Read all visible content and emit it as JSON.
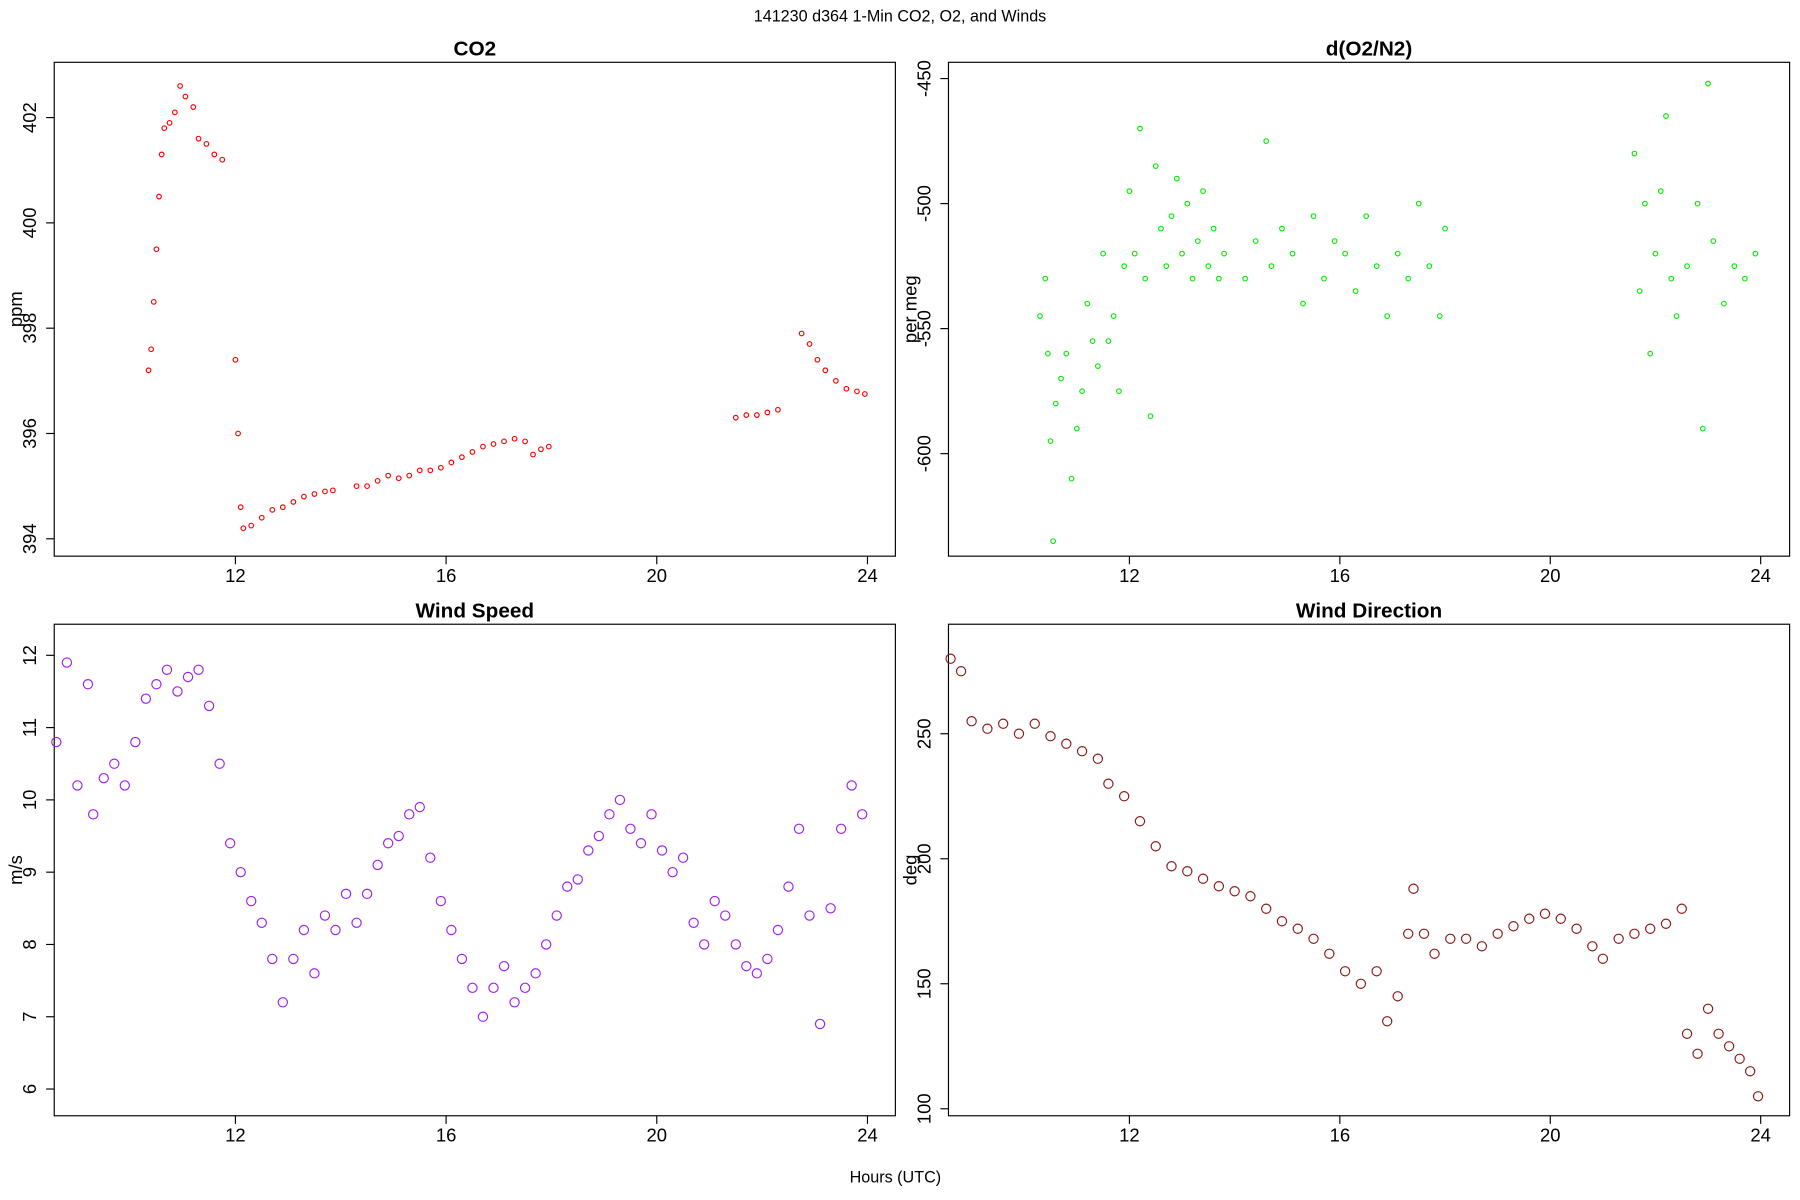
{
  "title": "141230   d364   1-Min CO2, O2, and Winds",
  "xlabel": "Hours (UTC)",
  "chart_data": [
    {
      "type": "scatter",
      "title": "CO2",
      "ylabel": "ppm",
      "color": "#ff0000",
      "xlim": [
        8.56,
        24.53
      ],
      "ylim": [
        393.67,
        403.05
      ],
      "xticks": [
        12,
        16,
        20,
        24
      ],
      "yticks": [
        394,
        396,
        398,
        400,
        402
      ],
      "x": [
        10.35,
        10.4,
        10.45,
        10.5,
        10.55,
        10.6,
        10.65,
        10.75,
        10.85,
        10.95,
        11.05,
        11.2,
        11.3,
        11.45,
        11.6,
        11.75,
        12.0,
        12.05,
        12.1,
        12.15,
        12.3,
        12.5,
        12.7,
        12.9,
        13.1,
        13.3,
        13.5,
        13.7,
        13.85,
        14.3,
        14.5,
        14.7,
        14.9,
        15.1,
        15.3,
        15.5,
        15.7,
        15.9,
        16.1,
        16.3,
        16.5,
        16.7,
        16.9,
        17.1,
        17.3,
        17.5,
        17.65,
        17.8,
        17.95,
        21.5,
        21.7,
        21.9,
        22.1,
        22.3,
        22.75,
        22.9,
        23.05,
        23.2,
        23.4,
        23.6,
        23.8,
        23.95
      ],
      "values": [
        397.2,
        397.6,
        398.5,
        399.5,
        400.5,
        401.3,
        401.8,
        401.9,
        402.1,
        402.6,
        402.4,
        402.2,
        401.6,
        401.5,
        401.3,
        401.2,
        397.4,
        396.0,
        394.6,
        394.2,
        394.25,
        394.4,
        394.55,
        394.6,
        394.7,
        394.8,
        394.85,
        394.9,
        394.92,
        395.0,
        395.0,
        395.1,
        395.2,
        395.15,
        395.2,
        395.3,
        395.3,
        395.35,
        395.45,
        395.55,
        395.65,
        395.75,
        395.8,
        395.85,
        395.9,
        395.85,
        395.6,
        395.7,
        395.75,
        396.3,
        396.35,
        396.35,
        396.4,
        396.45,
        397.9,
        397.7,
        397.4,
        397.2,
        397.0,
        396.85,
        396.8,
        396.75
      ]
    },
    {
      "type": "scatter",
      "title": "d(O2/N2)",
      "ylabel": "per meg",
      "color": "#00ee00",
      "xlim": [
        8.56,
        24.55
      ],
      "ylim": [
        -641,
        -443.5
      ],
      "xticks": [
        12,
        16,
        20,
        24
      ],
      "yticks": [
        -600,
        -550,
        -500,
        -450
      ],
      "x": [
        10.3,
        10.4,
        10.45,
        10.5,
        10.55,
        10.6,
        10.7,
        10.8,
        10.9,
        11.0,
        11.1,
        11.2,
        11.3,
        11.4,
        11.5,
        11.6,
        11.7,
        11.8,
        11.9,
        12.0,
        12.1,
        12.2,
        12.3,
        12.4,
        12.5,
        12.6,
        12.7,
        12.8,
        12.9,
        13.0,
        13.1,
        13.2,
        13.3,
        13.4,
        13.5,
        13.6,
        13.7,
        13.8,
        14.2,
        14.4,
        14.6,
        14.7,
        14.9,
        15.1,
        15.3,
        15.5,
        15.7,
        15.9,
        16.1,
        16.3,
        16.5,
        16.7,
        16.9,
        17.1,
        17.3,
        17.5,
        17.7,
        17.9,
        18.0,
        21.6,
        21.7,
        21.8,
        21.9,
        22.0,
        22.1,
        22.2,
        22.3,
        22.4,
        22.6,
        22.8,
        22.9,
        23.0,
        23.1,
        23.3,
        23.5,
        23.7,
        23.9
      ],
      "values": [
        -545,
        -530,
        -560,
        -595,
        -635,
        -580,
        -570,
        -560,
        -610,
        -590,
        -575,
        -540,
        -555,
        -565,
        -520,
        -555,
        -545,
        -575,
        -525,
        -495,
        -520,
        -470,
        -530,
        -585,
        -485,
        -510,
        -525,
        -505,
        -490,
        -520,
        -500,
        -530,
        -515,
        -495,
        -525,
        -510,
        -530,
        -520,
        -530,
        -515,
        -475,
        -525,
        -510,
        -520,
        -540,
        -505,
        -530,
        -515,
        -520,
        -535,
        -505,
        -525,
        -545,
        -520,
        -530,
        -500,
        -525,
        -545,
        -510,
        -480,
        -535,
        -500,
        -560,
        -520,
        -495,
        -465,
        -530,
        -545,
        -525,
        -500,
        -590,
        -452,
        -515,
        -540,
        -525,
        -530,
        -520
      ]
    },
    {
      "type": "scatter",
      "title": "Wind Speed",
      "ylabel": "m/s",
      "color": "#a020f0",
      "xlim": [
        8.56,
        24.53
      ],
      "ylim": [
        5.63,
        12.43
      ],
      "xticks": [
        12,
        16,
        20,
        24
      ],
      "yticks": [
        6,
        7,
        8,
        9,
        10,
        11,
        12
      ],
      "x": [
        8.6,
        8.8,
        9.0,
        9.2,
        9.3,
        9.5,
        9.7,
        9.9,
        10.1,
        10.3,
        10.5,
        10.7,
        10.9,
        11.1,
        11.3,
        11.5,
        11.7,
        11.9,
        12.1,
        12.3,
        12.5,
        12.7,
        12.9,
        13.1,
        13.3,
        13.5,
        13.7,
        13.9,
        14.1,
        14.3,
        14.5,
        14.7,
        14.9,
        15.1,
        15.3,
        15.5,
        15.7,
        15.9,
        16.1,
        16.3,
        16.5,
        16.7,
        16.9,
        17.1,
        17.3,
        17.5,
        17.7,
        17.9,
        18.1,
        18.3,
        18.5,
        18.7,
        18.9,
        19.1,
        19.3,
        19.5,
        19.7,
        19.9,
        20.1,
        20.3,
        20.5,
        20.7,
        20.9,
        21.1,
        21.3,
        21.5,
        21.7,
        21.9,
        22.1,
        22.3,
        22.5,
        22.7,
        22.9,
        23.1,
        23.3,
        23.5,
        23.7,
        23.9
      ],
      "values": [
        10.8,
        11.9,
        10.2,
        11.6,
        9.8,
        10.3,
        10.5,
        10.2,
        10.8,
        11.4,
        11.6,
        11.8,
        11.5,
        11.7,
        11.8,
        11.3,
        10.5,
        9.4,
        9.0,
        8.6,
        8.3,
        7.8,
        7.2,
        7.8,
        8.2,
        7.6,
        8.4,
        8.2,
        8.7,
        8.3,
        8.7,
        9.1,
        9.4,
        9.5,
        9.8,
        9.9,
        9.2,
        8.6,
        8.2,
        7.8,
        7.4,
        7.0,
        7.4,
        7.7,
        7.2,
        7.4,
        7.6,
        8.0,
        8.4,
        8.8,
        8.9,
        9.3,
        9.5,
        9.8,
        10.0,
        9.6,
        9.4,
        9.8,
        9.3,
        9.0,
        9.2,
        8.3,
        8.0,
        8.6,
        8.4,
        8.0,
        7.7,
        7.6,
        7.8,
        8.2,
        8.8,
        9.6,
        8.4,
        6.9,
        8.5,
        9.6,
        10.2,
        9.8
      ]
    },
    {
      "type": "scatter",
      "title": "Wind Direction",
      "ylabel": "deg",
      "color": "#8b1a1a",
      "xlim": [
        8.56,
        24.55
      ],
      "ylim": [
        97.2,
        293.8
      ],
      "xticks": [
        12,
        16,
        20,
        24
      ],
      "yticks": [
        100,
        150,
        200,
        250
      ],
      "x": [
        8.6,
        8.8,
        9.0,
        9.3,
        9.6,
        9.9,
        10.2,
        10.5,
        10.8,
        11.1,
        11.4,
        11.6,
        11.9,
        12.2,
        12.5,
        12.8,
        13.1,
        13.4,
        13.7,
        14.0,
        14.3,
        14.6,
        14.9,
        15.2,
        15.5,
        15.8,
        16.1,
        16.4,
        16.7,
        16.9,
        17.1,
        17.3,
        17.4,
        17.6,
        17.8,
        18.1,
        18.4,
        18.7,
        19.0,
        19.3,
        19.6,
        19.9,
        20.2,
        20.5,
        20.8,
        21.0,
        21.3,
        21.6,
        21.9,
        22.2,
        22.5,
        22.6,
        22.8,
        23.0,
        23.2,
        23.4,
        23.6,
        23.8,
        23.95
      ],
      "values": [
        280,
        275,
        255,
        252,
        254,
        250,
        254,
        249,
        246,
        243,
        240,
        230,
        225,
        215,
        205,
        197,
        195,
        192,
        189,
        187,
        185,
        180,
        175,
        172,
        168,
        162,
        155,
        150,
        155,
        135,
        145,
        170,
        188,
        170,
        162,
        168,
        168,
        165,
        170,
        173,
        176,
        178,
        176,
        172,
        165,
        160,
        168,
        170,
        172,
        174,
        180,
        130,
        122,
        140,
        130,
        125,
        120,
        115,
        105
      ]
    }
  ]
}
